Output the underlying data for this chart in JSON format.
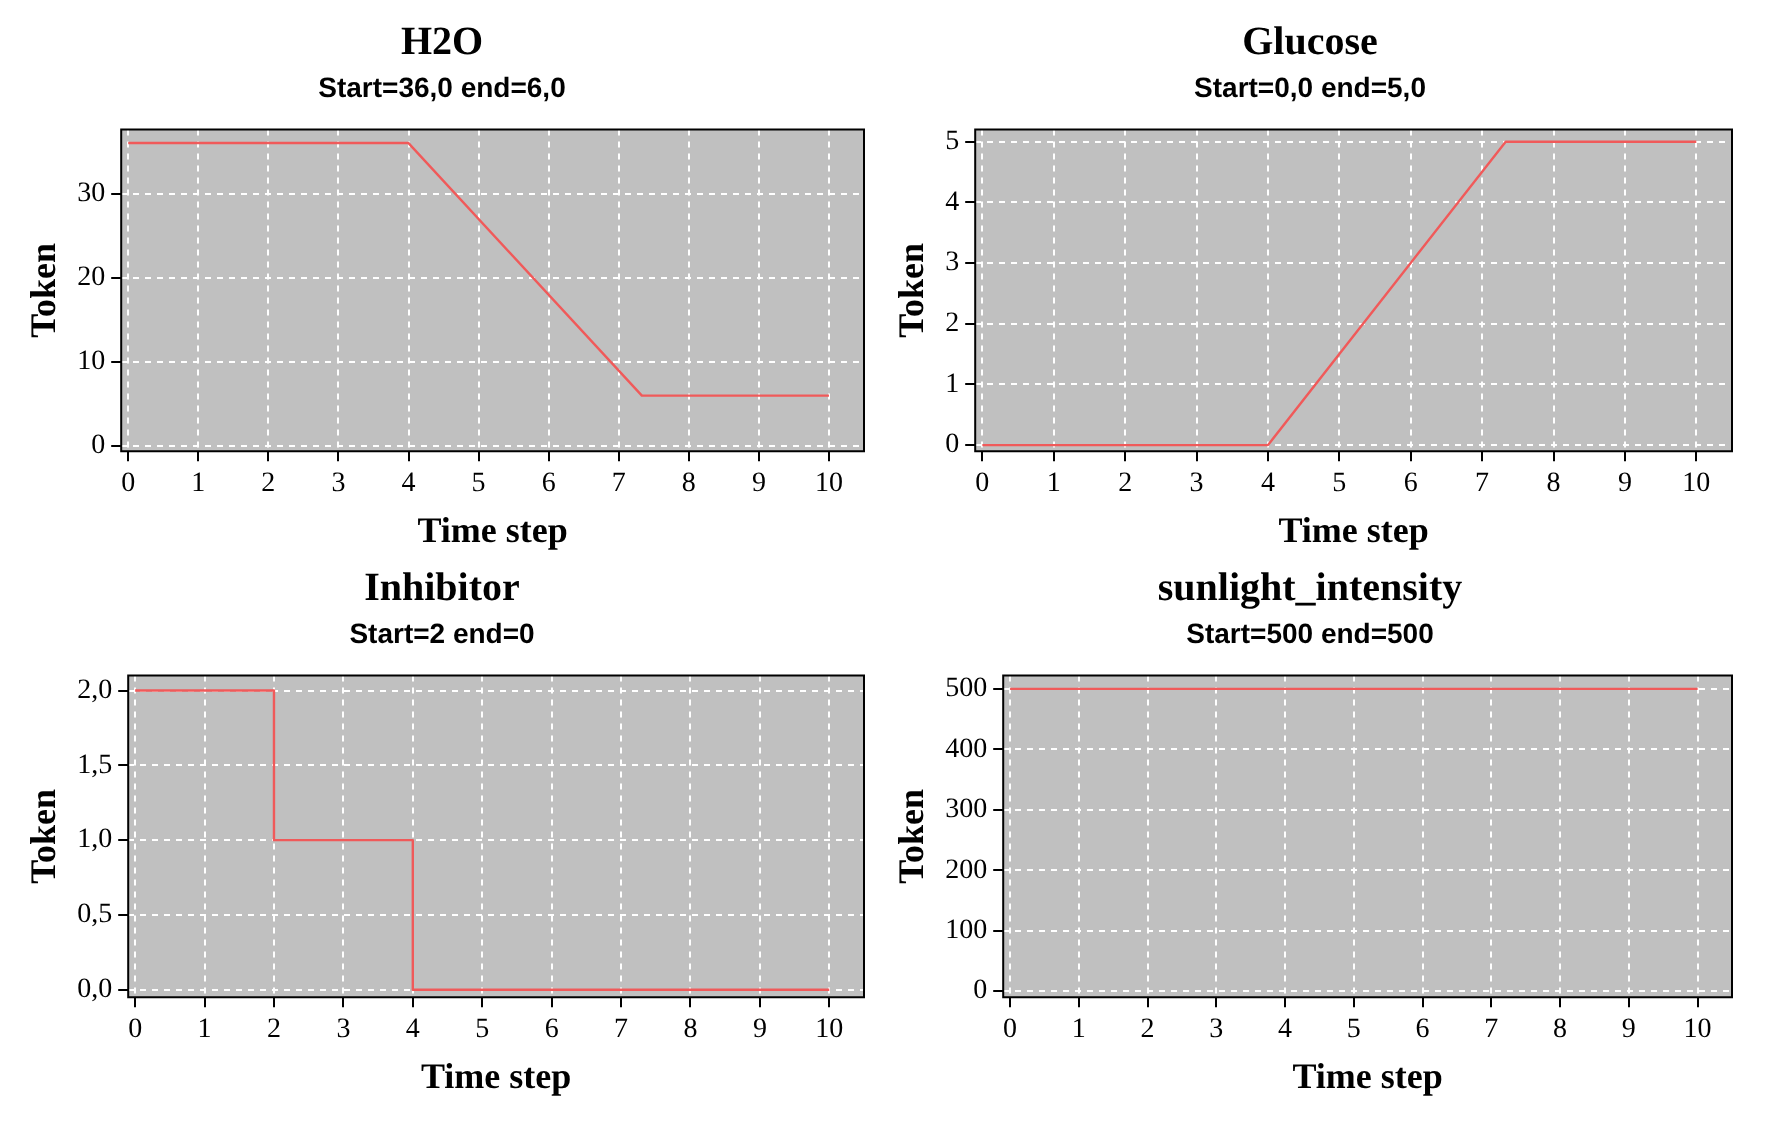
{
  "chart_data": [
    {
      "type": "line",
      "title": "H2O",
      "subtitle": "Start=36,0 end=6,0",
      "xlabel": "Time step",
      "ylabel": "Token",
      "x": [
        0,
        4,
        7.33,
        10
      ],
      "series": [
        {
          "color": "#f05a5a",
          "values": [
            36,
            36,
            6,
            6
          ]
        }
      ],
      "xlim": [
        -0.1,
        10.5
      ],
      "xticks": [
        0,
        1,
        2,
        3,
        4,
        5,
        6,
        7,
        8,
        9,
        10
      ],
      "ylim": [
        -0.6,
        37.6
      ],
      "yticks": [
        0,
        10,
        20,
        30
      ],
      "grid": true,
      "marker": "none",
      "legend": false
    },
    {
      "type": "line",
      "title": "Glucose",
      "subtitle": "Start=0,0 end=5,0",
      "xlabel": "Time step",
      "ylabel": "Token",
      "x": [
        0,
        4,
        7.33,
        10
      ],
      "series": [
        {
          "color": "#f05a5a",
          "values": [
            0,
            0,
            5,
            5
          ]
        }
      ],
      "xlim": [
        -0.1,
        10.5
      ],
      "xticks": [
        0,
        1,
        2,
        3,
        4,
        5,
        6,
        7,
        8,
        9,
        10
      ],
      "ylim": [
        -0.1,
        5.2
      ],
      "yticks": [
        0,
        1,
        2,
        3,
        4,
        5
      ],
      "grid": true,
      "marker": "none",
      "legend": false
    },
    {
      "type": "step",
      "title": "Inhibitor",
      "subtitle": "Start=2 end=0",
      "xlabel": "Time step",
      "ylabel": "Token",
      "x": [
        0,
        2,
        4,
        10
      ],
      "series": [
        {
          "color": "#f05a5a",
          "values": [
            2,
            1,
            0,
            0
          ]
        }
      ],
      "xlim": [
        -0.1,
        10.5
      ],
      "xticks": [
        0,
        1,
        2,
        3,
        4,
        5,
        6,
        7,
        8,
        9,
        10
      ],
      "ylim": [
        -0.05,
        2.1
      ],
      "yticks": [
        {
          "value": 0,
          "label": "0,0"
        },
        {
          "value": 0.5,
          "label": "0,5"
        },
        {
          "value": 1,
          "label": "1,0"
        },
        {
          "value": 1.5,
          "label": "1,5"
        },
        {
          "value": 2,
          "label": "2,0"
        }
      ],
      "grid": true,
      "marker": "none",
      "legend": false
    },
    {
      "type": "line",
      "title": "sunlight_intensity",
      "subtitle": "Start=500 end=500",
      "xlabel": "Time step",
      "ylabel": "Token",
      "x": [
        0,
        10
      ],
      "series": [
        {
          "color": "#f05a5a",
          "values": [
            500,
            500
          ]
        }
      ],
      "xlim": [
        -0.1,
        10.5
      ],
      "xticks": [
        0,
        1,
        2,
        3,
        4,
        5,
        6,
        7,
        8,
        9,
        10
      ],
      "ylim": [
        -10,
        522
      ],
      "yticks": [
        0,
        100,
        200,
        300,
        400,
        500
      ],
      "grid": true,
      "marker": "none",
      "legend": false
    }
  ]
}
